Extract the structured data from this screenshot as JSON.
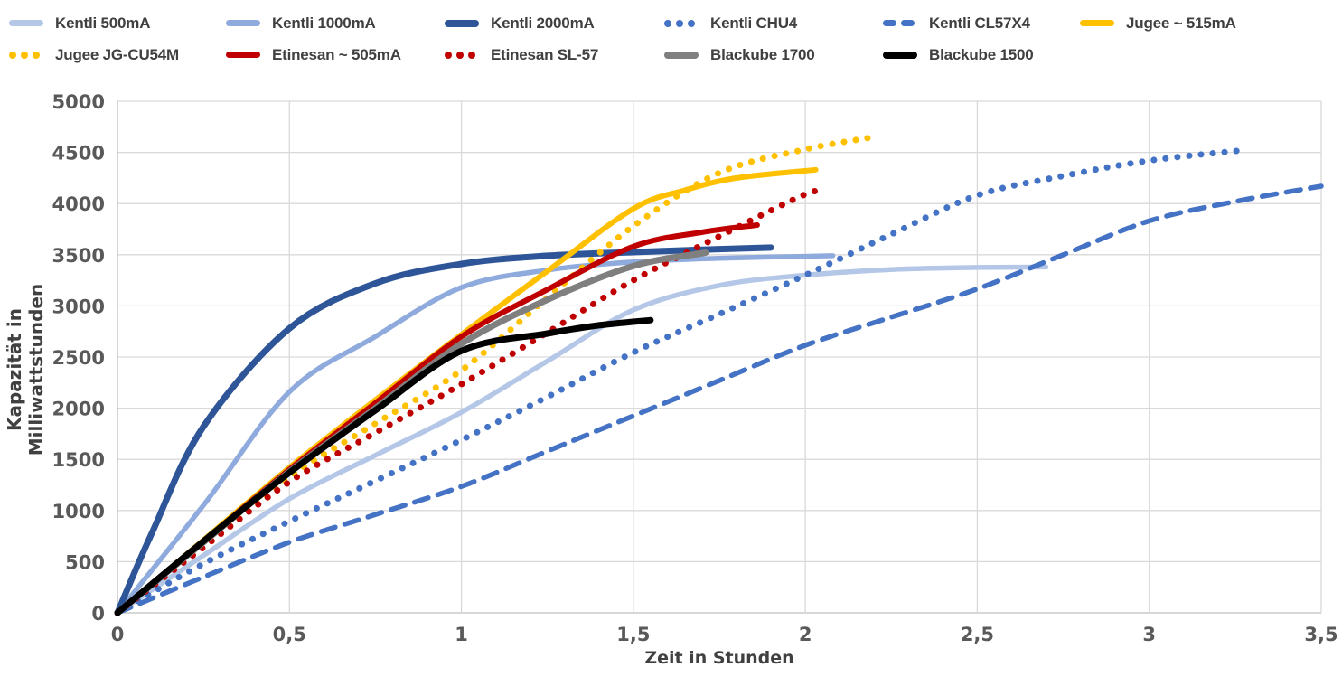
{
  "chart_data": {
    "type": "line",
    "xlabel": "Zeit in Stunden",
    "ylabel": "Kapazität in Milliwattstunden",
    "xlim": [
      0,
      3.5
    ],
    "ylim": [
      0,
      5000
    ],
    "grid": true,
    "legend_position": "top",
    "x_ticks": [
      "0",
      "0,5",
      "1",
      "1,5",
      "2",
      "2,5",
      "3",
      "3,5"
    ],
    "x_tick_values": [
      0,
      0.5,
      1,
      1.5,
      2,
      2.5,
      3,
      3.5
    ],
    "y_ticks": [
      "0",
      "500",
      "1000",
      "1500",
      "2000",
      "2500",
      "3000",
      "3500",
      "4000",
      "4500",
      "5000"
    ],
    "y_tick_values": [
      0,
      500,
      1000,
      1500,
      2000,
      2500,
      3000,
      3500,
      4000,
      4500,
      5000
    ],
    "series": [
      {
        "name": "Kentli 500mA",
        "color": "#b4c7e7",
        "line_style": "solid",
        "line_width": 5.5,
        "points": [
          [
            0,
            0
          ],
          [
            0.25,
            560
          ],
          [
            0.5,
            1115
          ],
          [
            0.75,
            1540
          ],
          [
            1,
            1960
          ],
          [
            1.25,
            2460
          ],
          [
            1.5,
            2960
          ],
          [
            1.75,
            3200
          ],
          [
            2,
            3300
          ],
          [
            2.25,
            3355
          ],
          [
            2.5,
            3375
          ],
          [
            2.7,
            3380
          ]
        ]
      },
      {
        "name": "Kentli 1000mA",
        "color": "#8faadc",
        "line_style": "solid",
        "line_width": 5.5,
        "points": [
          [
            0,
            0
          ],
          [
            0.25,
            1050
          ],
          [
            0.5,
            2160
          ],
          [
            0.75,
            2700
          ],
          [
            1,
            3180
          ],
          [
            1.25,
            3350
          ],
          [
            1.5,
            3430
          ],
          [
            1.75,
            3465
          ],
          [
            2.08,
            3490
          ]
        ]
      },
      {
        "name": "Kentli 2000mA",
        "color": "#2e5597",
        "line_style": "solid",
        "line_width": 7,
        "points": [
          [
            0,
            0
          ],
          [
            0.1,
            780
          ],
          [
            0.25,
            1820
          ],
          [
            0.5,
            2780
          ],
          [
            0.75,
            3220
          ],
          [
            1,
            3410
          ],
          [
            1.25,
            3490
          ],
          [
            1.5,
            3525
          ],
          [
            1.75,
            3555
          ],
          [
            1.9,
            3570
          ]
        ]
      },
      {
        "name": "Kentli CHU4",
        "color": "#4472c4",
        "line_style": "dotted",
        "line_width": 7,
        "points": [
          [
            0,
            0
          ],
          [
            0.25,
            480
          ],
          [
            0.5,
            895
          ],
          [
            0.75,
            1290
          ],
          [
            1,
            1690
          ],
          [
            1.25,
            2110
          ],
          [
            1.5,
            2545
          ],
          [
            1.75,
            2920
          ],
          [
            2,
            3300
          ],
          [
            2.25,
            3700
          ],
          [
            2.5,
            4080
          ],
          [
            2.75,
            4270
          ],
          [
            3,
            4420
          ],
          [
            3.27,
            4520
          ]
        ]
      },
      {
        "name": "Kentli CL57X4",
        "color": "#4472c4",
        "line_style": "dashed",
        "line_width": 5.5,
        "points": [
          [
            0,
            0
          ],
          [
            0.25,
            350
          ],
          [
            0.5,
            690
          ],
          [
            0.75,
            960
          ],
          [
            1,
            1235
          ],
          [
            1.25,
            1580
          ],
          [
            1.5,
            1925
          ],
          [
            1.75,
            2270
          ],
          [
            2,
            2615
          ],
          [
            2.25,
            2890
          ],
          [
            2.5,
            3165
          ],
          [
            2.75,
            3500
          ],
          [
            3,
            3830
          ],
          [
            3.25,
            4020
          ],
          [
            3.5,
            4170
          ]
        ]
      },
      {
        "name": "Jugee ~ 515mA",
        "color": "#ffc000",
        "line_style": "solid",
        "line_width": 6,
        "points": [
          [
            0,
            0
          ],
          [
            0.25,
            710
          ],
          [
            0.5,
            1420
          ],
          [
            0.75,
            2080
          ],
          [
            1,
            2720
          ],
          [
            1.25,
            3340
          ],
          [
            1.5,
            3950
          ],
          [
            1.65,
            4130
          ],
          [
            1.8,
            4250
          ],
          [
            2.03,
            4330
          ]
        ]
      },
      {
        "name": "Jugee JG-CU54M",
        "color": "#ffc000",
        "line_style": "dotted",
        "line_width": 7,
        "points": [
          [
            0,
            0
          ],
          [
            0.25,
            660
          ],
          [
            0.5,
            1330
          ],
          [
            0.75,
            1850
          ],
          [
            1,
            2370
          ],
          [
            1.25,
            3080
          ],
          [
            1.5,
            3780
          ],
          [
            1.75,
            4300
          ],
          [
            2,
            4530
          ],
          [
            2.2,
            4650
          ]
        ]
      },
      {
        "name": "Etinesan ~ 505mA",
        "color": "#c00000",
        "line_style": "solid",
        "line_width": 6,
        "points": [
          [
            0,
            0
          ],
          [
            0.25,
            700
          ],
          [
            0.5,
            1400
          ],
          [
            0.75,
            2050
          ],
          [
            1,
            2700
          ],
          [
            1.25,
            3160
          ],
          [
            1.5,
            3580
          ],
          [
            1.7,
            3720
          ],
          [
            1.86,
            3790
          ]
        ]
      },
      {
        "name": "Etinesan SL-57",
        "color": "#c00000",
        "line_style": "dotted",
        "line_width": 7,
        "points": [
          [
            0,
            0
          ],
          [
            0.25,
            640
          ],
          [
            0.5,
            1280
          ],
          [
            0.75,
            1760
          ],
          [
            1,
            2235
          ],
          [
            1.25,
            2740
          ],
          [
            1.5,
            3250
          ],
          [
            1.75,
            3680
          ],
          [
            2,
            4090
          ],
          [
            2.06,
            4110
          ]
        ]
      },
      {
        "name": "Blackube 1700",
        "color": "#7f7f7f",
        "line_style": "solid",
        "line_width": 7,
        "points": [
          [
            0,
            0
          ],
          [
            0.25,
            690
          ],
          [
            0.5,
            1380
          ],
          [
            0.75,
            2000
          ],
          [
            1,
            2630
          ],
          [
            1.25,
            3060
          ],
          [
            1.5,
            3390
          ],
          [
            1.71,
            3520
          ]
        ]
      },
      {
        "name": "Blackube 1500",
        "color": "#000000",
        "line_style": "solid",
        "line_width": 7,
        "points": [
          [
            0,
            0
          ],
          [
            0.25,
            700
          ],
          [
            0.5,
            1370
          ],
          [
            0.75,
            1980
          ],
          [
            1,
            2560
          ],
          [
            1.25,
            2730
          ],
          [
            1.4,
            2810
          ],
          [
            1.55,
            2860
          ]
        ]
      }
    ],
    "legend_rows": [
      [
        0,
        1,
        2,
        3,
        4,
        5
      ],
      [
        6,
        7,
        8,
        9,
        10
      ]
    ]
  },
  "style": {
    "grid_color": "#d9d9d9",
    "axis_line_color": "#bfbfbf",
    "tick_text_color": "#595959",
    "title_text_color": "#404040",
    "background": "#ffffff"
  }
}
